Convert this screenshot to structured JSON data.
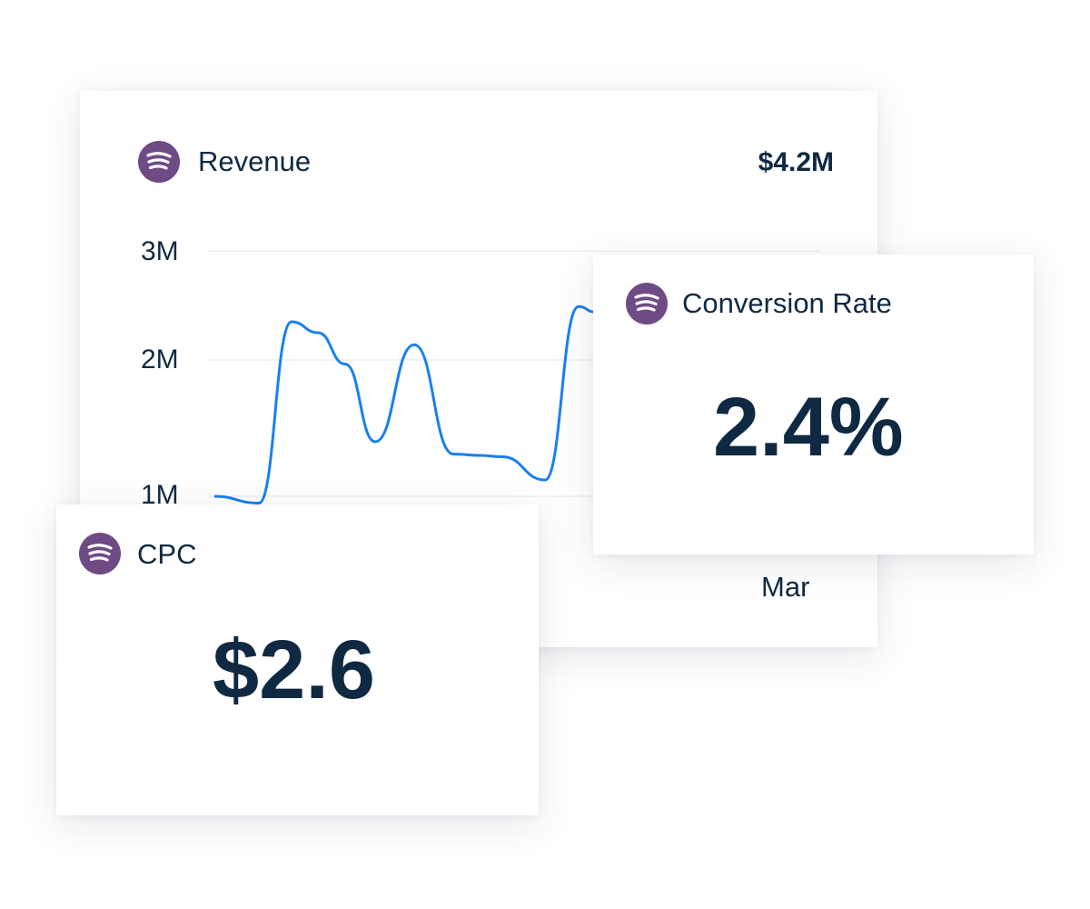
{
  "revenue_card": {
    "title": "Revenue",
    "total": "$4.2M",
    "icon": "spotify-icon",
    "icon_color": "#6f4b86"
  },
  "conversion_card": {
    "title": "Conversion Rate",
    "value": "2.4%",
    "icon": "spotify-icon"
  },
  "cpc_card": {
    "title": "CPC",
    "value": "$2.6",
    "icon": "spotify-icon"
  },
  "chart_data": {
    "type": "line",
    "title": "Revenue",
    "y_tick_labels": [
      "3M",
      "2M",
      "1M"
    ],
    "x_tick_labels": [
      "Mar"
    ],
    "line_color": "#1a7ff0",
    "grid": true,
    "values_millions": [
      1.0,
      0.95,
      2.35,
      2.25,
      1.97,
      1.4,
      2.14,
      1.31,
      1.3,
      1.29,
      1.12,
      2.49,
      2.44
    ]
  }
}
